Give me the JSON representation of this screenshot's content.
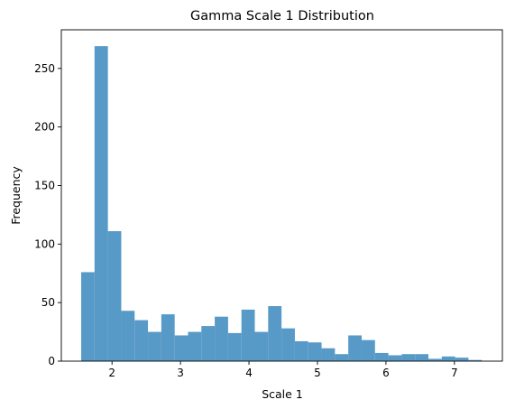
{
  "chart_data": {
    "type": "bar",
    "histogram": true,
    "title": "Gamma Scale 1 Distribution",
    "xlabel": "Scale 1",
    "ylabel": "Frequency",
    "xlim": [
      1.26,
      7.7
    ],
    "ylim": [
      0,
      283
    ],
    "xticks": [
      2,
      3,
      4,
      5,
      6,
      7
    ],
    "yticks": [
      0,
      50,
      100,
      150,
      200,
      250
    ],
    "bar_color": "#5799c7",
    "grid": false,
    "legend": "none",
    "bins": [
      {
        "x0": 1.55,
        "x1": 1.745,
        "value": 76
      },
      {
        "x0": 1.745,
        "x1": 1.94,
        "value": 269
      },
      {
        "x0": 1.94,
        "x1": 2.135,
        "value": 111
      },
      {
        "x0": 2.135,
        "x1": 2.33,
        "value": 43
      },
      {
        "x0": 2.33,
        "x1": 2.525,
        "value": 35
      },
      {
        "x0": 2.525,
        "x1": 2.72,
        "value": 25
      },
      {
        "x0": 2.72,
        "x1": 2.915,
        "value": 40
      },
      {
        "x0": 2.915,
        "x1": 3.11,
        "value": 22
      },
      {
        "x0": 3.11,
        "x1": 3.305,
        "value": 25
      },
      {
        "x0": 3.305,
        "x1": 3.5,
        "value": 30
      },
      {
        "x0": 3.5,
        "x1": 3.695,
        "value": 38
      },
      {
        "x0": 3.695,
        "x1": 3.89,
        "value": 24
      },
      {
        "x0": 3.89,
        "x1": 4.085,
        "value": 44
      },
      {
        "x0": 4.085,
        "x1": 4.28,
        "value": 25
      },
      {
        "x0": 4.28,
        "x1": 4.475,
        "value": 47
      },
      {
        "x0": 4.475,
        "x1": 4.67,
        "value": 28
      },
      {
        "x0": 4.67,
        "x1": 4.865,
        "value": 17
      },
      {
        "x0": 4.865,
        "x1": 5.06,
        "value": 16
      },
      {
        "x0": 5.06,
        "x1": 5.255,
        "value": 11
      },
      {
        "x0": 5.255,
        "x1": 5.45,
        "value": 6
      },
      {
        "x0": 5.45,
        "x1": 5.645,
        "value": 22
      },
      {
        "x0": 5.645,
        "x1": 5.84,
        "value": 18
      },
      {
        "x0": 5.84,
        "x1": 6.035,
        "value": 7
      },
      {
        "x0": 6.035,
        "x1": 6.23,
        "value": 5
      },
      {
        "x0": 6.23,
        "x1": 6.425,
        "value": 6
      },
      {
        "x0": 6.425,
        "x1": 6.62,
        "value": 6
      },
      {
        "x0": 6.62,
        "x1": 6.815,
        "value": 2
      },
      {
        "x0": 6.815,
        "x1": 7.01,
        "value": 4
      },
      {
        "x0": 7.01,
        "x1": 7.205,
        "value": 3
      },
      {
        "x0": 7.205,
        "x1": 7.4,
        "value": 1
      }
    ]
  }
}
